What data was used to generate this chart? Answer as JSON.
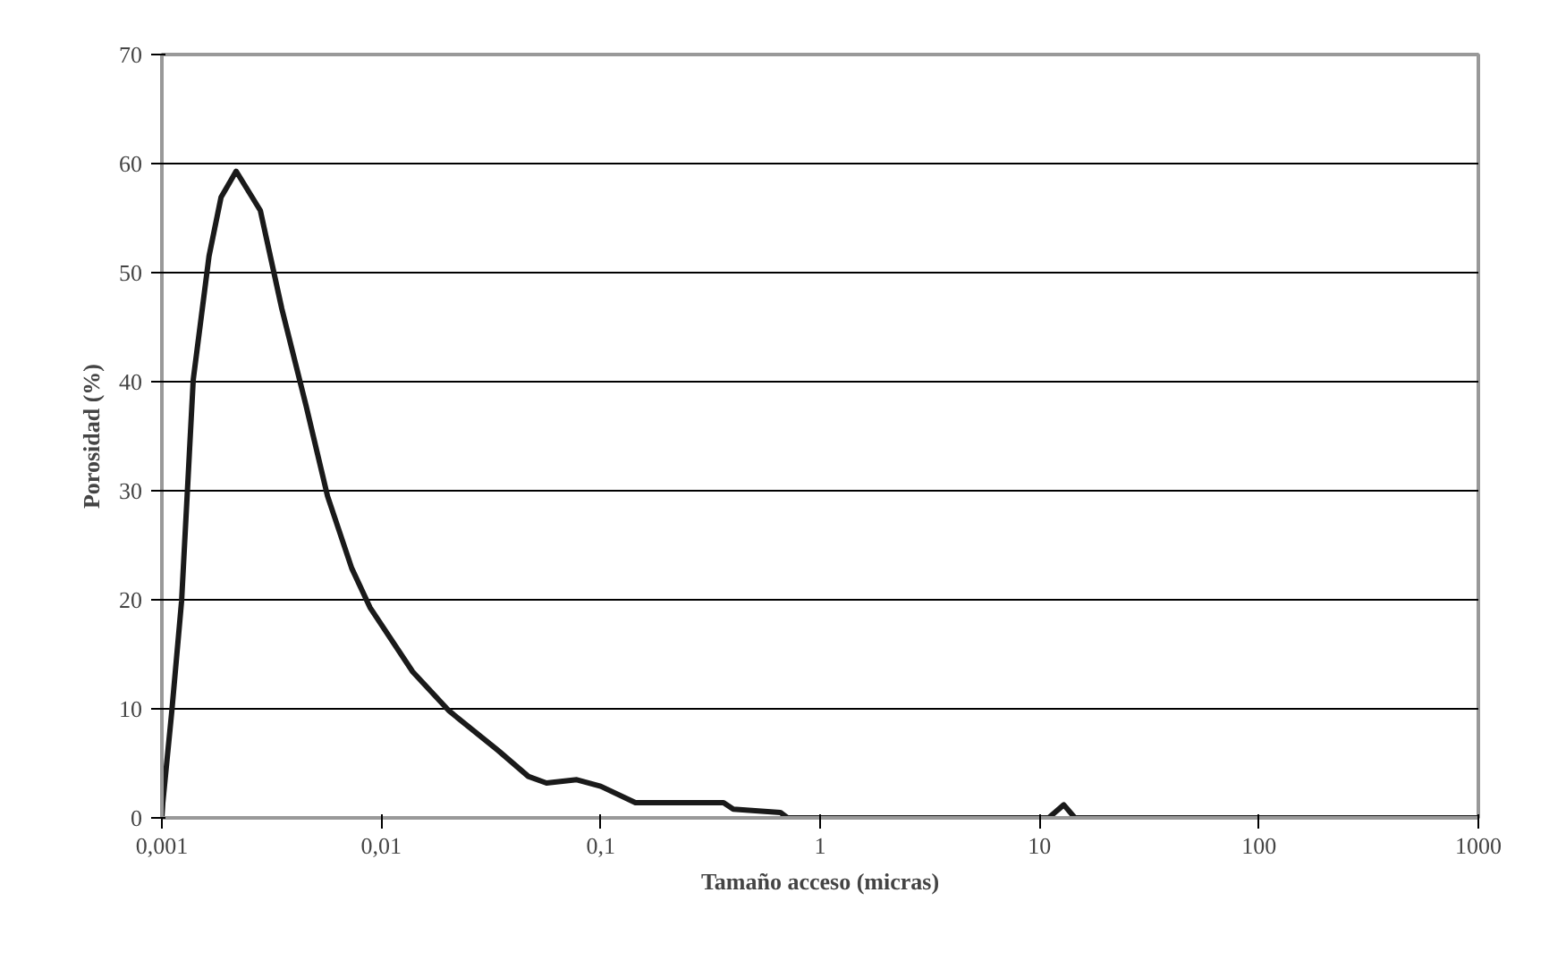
{
  "chart_data": {
    "type": "line",
    "xlabel": "Tamaño acceso (micras)",
    "ylabel": "Porosidad (%)",
    "log": "x",
    "xlim": [
      0.001,
      1000
    ],
    "ylim": [
      0,
      70
    ],
    "xticks": [
      {
        "value": 0.001,
        "label": "0,001"
      },
      {
        "value": 0.01,
        "label": "0,01"
      },
      {
        "value": 0.1,
        "label": "0,1"
      },
      1,
      10,
      100,
      1000
    ],
    "yticks": [
      0,
      10,
      20,
      30,
      40,
      50,
      60,
      70
    ],
    "grid": "y",
    "marker": "none",
    "line_style": "solid",
    "x": [
      0.001,
      0.00101,
      0.00111,
      0.00123,
      0.00139,
      0.00164,
      0.00186,
      0.00218,
      0.00281,
      0.00352,
      0.00454,
      0.00569,
      0.00733,
      0.00888,
      0.0139,
      0.0204,
      0.034,
      0.0468,
      0.0566,
      0.0778,
      0.1,
      0.144,
      0.363,
      0.402,
      0.659,
      0.71,
      11,
      12.9,
      14.5,
      1000
    ],
    "series": [
      {
        "color": "#1a1a1a",
        "values": [
          0,
          1.4,
          9.8,
          19.9,
          40.2,
          51.5,
          56.9,
          59.3,
          55.7,
          46.7,
          37.8,
          29.5,
          22.9,
          19.3,
          13.4,
          9.8,
          6.2,
          3.8,
          3.2,
          3.5,
          2.9,
          1.4,
          1.4,
          0.8,
          0.5,
          0,
          0,
          1.2,
          0,
          0
        ]
      }
    ]
  }
}
